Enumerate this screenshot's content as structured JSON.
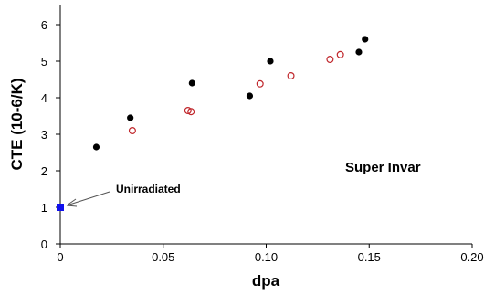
{
  "chart_data": {
    "type": "scatter",
    "title": "",
    "xlabel": "dpa",
    "ylabel": "CTE (10-6/K)",
    "xlim": [
      0,
      0.2
    ],
    "ylim": [
      0,
      6
    ],
    "x_ticks": [
      0,
      0.05,
      0.1,
      0.15,
      0.2
    ],
    "x_tick_labels": [
      "0",
      "0.05",
      "0.10",
      "0.15",
      "0.20"
    ],
    "y_ticks": [
      0,
      1,
      2,
      3,
      4,
      5,
      6
    ],
    "y_tick_labels": [
      "0",
      "1",
      "2",
      "3",
      "4",
      "5",
      "6"
    ],
    "grid": false,
    "legend": "none",
    "series": [
      {
        "marker": "filled-circle",
        "color": "#000000",
        "points": [
          {
            "x": 0.0175,
            "y": 2.65
          },
          {
            "x": 0.034,
            "y": 3.45
          },
          {
            "x": 0.064,
            "y": 4.4
          },
          {
            "x": 0.092,
            "y": 4.05
          },
          {
            "x": 0.102,
            "y": 5.0
          },
          {
            "x": 0.145,
            "y": 5.25
          },
          {
            "x": 0.148,
            "y": 5.6
          }
        ]
      },
      {
        "marker": "open-circle",
        "color": "#c0262b",
        "points": [
          {
            "x": 0.035,
            "y": 3.1
          },
          {
            "x": 0.062,
            "y": 3.65
          },
          {
            "x": 0.0635,
            "y": 3.62
          },
          {
            "x": 0.097,
            "y": 4.38
          },
          {
            "x": 0.112,
            "y": 4.6
          },
          {
            "x": 0.131,
            "y": 5.05
          },
          {
            "x": 0.136,
            "y": 5.18
          }
        ]
      },
      {
        "marker": "filled-square",
        "color": "#1010ee",
        "points": [
          {
            "x": 0.0,
            "y": 1.0
          }
        ]
      }
    ],
    "annotations": [
      {
        "text": "Unirradiated",
        "arrow_to": {
          "x": 0.0,
          "y": 1.0
        }
      },
      {
        "text": "Super Invar"
      }
    ]
  }
}
